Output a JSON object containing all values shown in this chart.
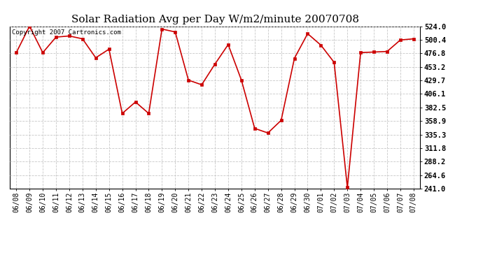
{
  "title": "Solar Radiation Avg per Day W/m2/minute 20070708",
  "copyright_text": "Copyright 2007 Cartronics.com",
  "dates": [
    "06/08",
    "06/09",
    "06/10",
    "06/11",
    "06/12",
    "06/13",
    "06/14",
    "06/15",
    "06/16",
    "06/17",
    "06/18",
    "06/19",
    "06/20",
    "06/21",
    "06/22",
    "06/23",
    "06/24",
    "06/25",
    "06/26",
    "06/27",
    "06/28",
    "06/29",
    "06/30",
    "07/01",
    "07/02",
    "07/03",
    "07/04",
    "07/05",
    "07/06",
    "07/07",
    "07/08"
  ],
  "values": [
    478.0,
    524.0,
    478.0,
    505.0,
    507.0,
    502.0,
    469.0,
    484.0,
    372.0,
    392.0,
    372.0,
    519.0,
    514.0,
    430.0,
    422.0,
    458.0,
    492.0,
    430.0,
    346.0,
    338.0,
    360.0,
    468.0,
    511.0,
    491.0,
    461.0,
    243.0,
    478.0,
    479.0,
    480.0,
    500.0,
    502.0
  ],
  "yticks": [
    524.0,
    500.4,
    476.8,
    453.2,
    429.7,
    406.1,
    382.5,
    358.9,
    335.3,
    311.8,
    288.2,
    264.6,
    241.0
  ],
  "ylim": [
    241.0,
    524.0
  ],
  "line_color": "#cc0000",
  "marker_color": "#cc0000",
  "bg_color": "#ffffff",
  "grid_color": "#c8c8c8",
  "title_fontsize": 11,
  "copyright_fontsize": 6.5,
  "tick_fontsize": 7,
  "ytick_fontsize": 7.5
}
